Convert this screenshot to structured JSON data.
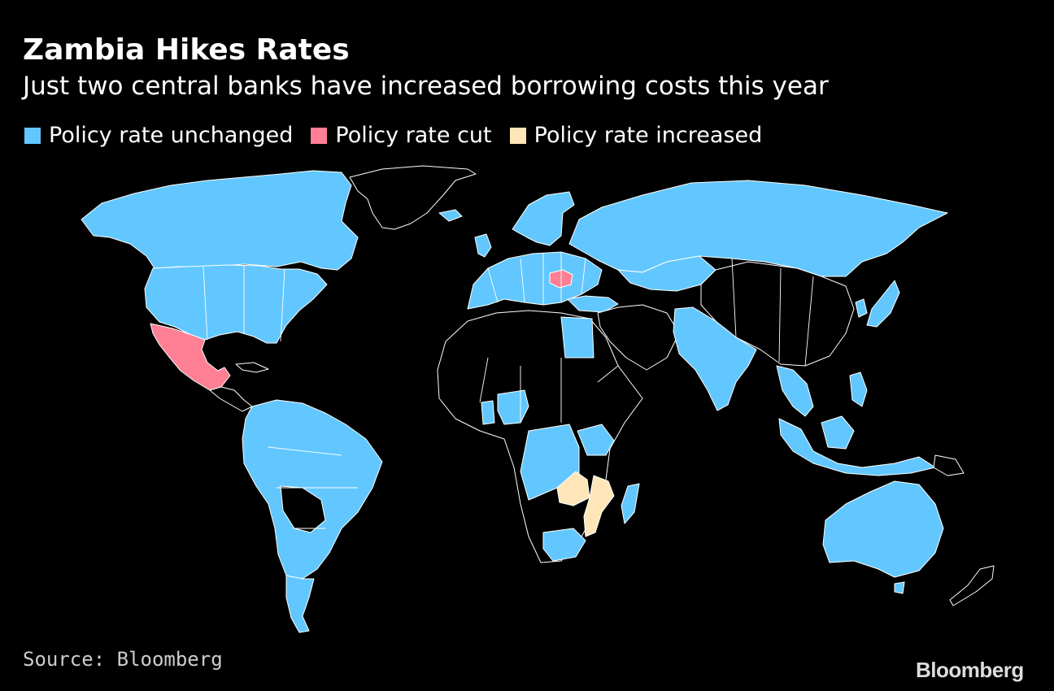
{
  "header": {
    "title": "Zambia Hikes Rates",
    "subtitle": "Just two central banks have increased borrowing costs this year"
  },
  "legend": {
    "items": [
      {
        "label": "Policy rate unchanged",
        "color": "#62c7ff"
      },
      {
        "label": "Policy rate cut",
        "color": "#ff7f94"
      },
      {
        "label": "Policy rate increased",
        "color": "#ffe6b8"
      }
    ]
  },
  "map": {
    "colors": {
      "unchanged": "#62c7ff",
      "cut": "#ff7f94",
      "increased": "#ffe6b8",
      "no_data": "#000000",
      "border": "#ffffff"
    }
  },
  "footer": {
    "source": "Source: Bloomberg",
    "brand": "Bloomberg"
  }
}
